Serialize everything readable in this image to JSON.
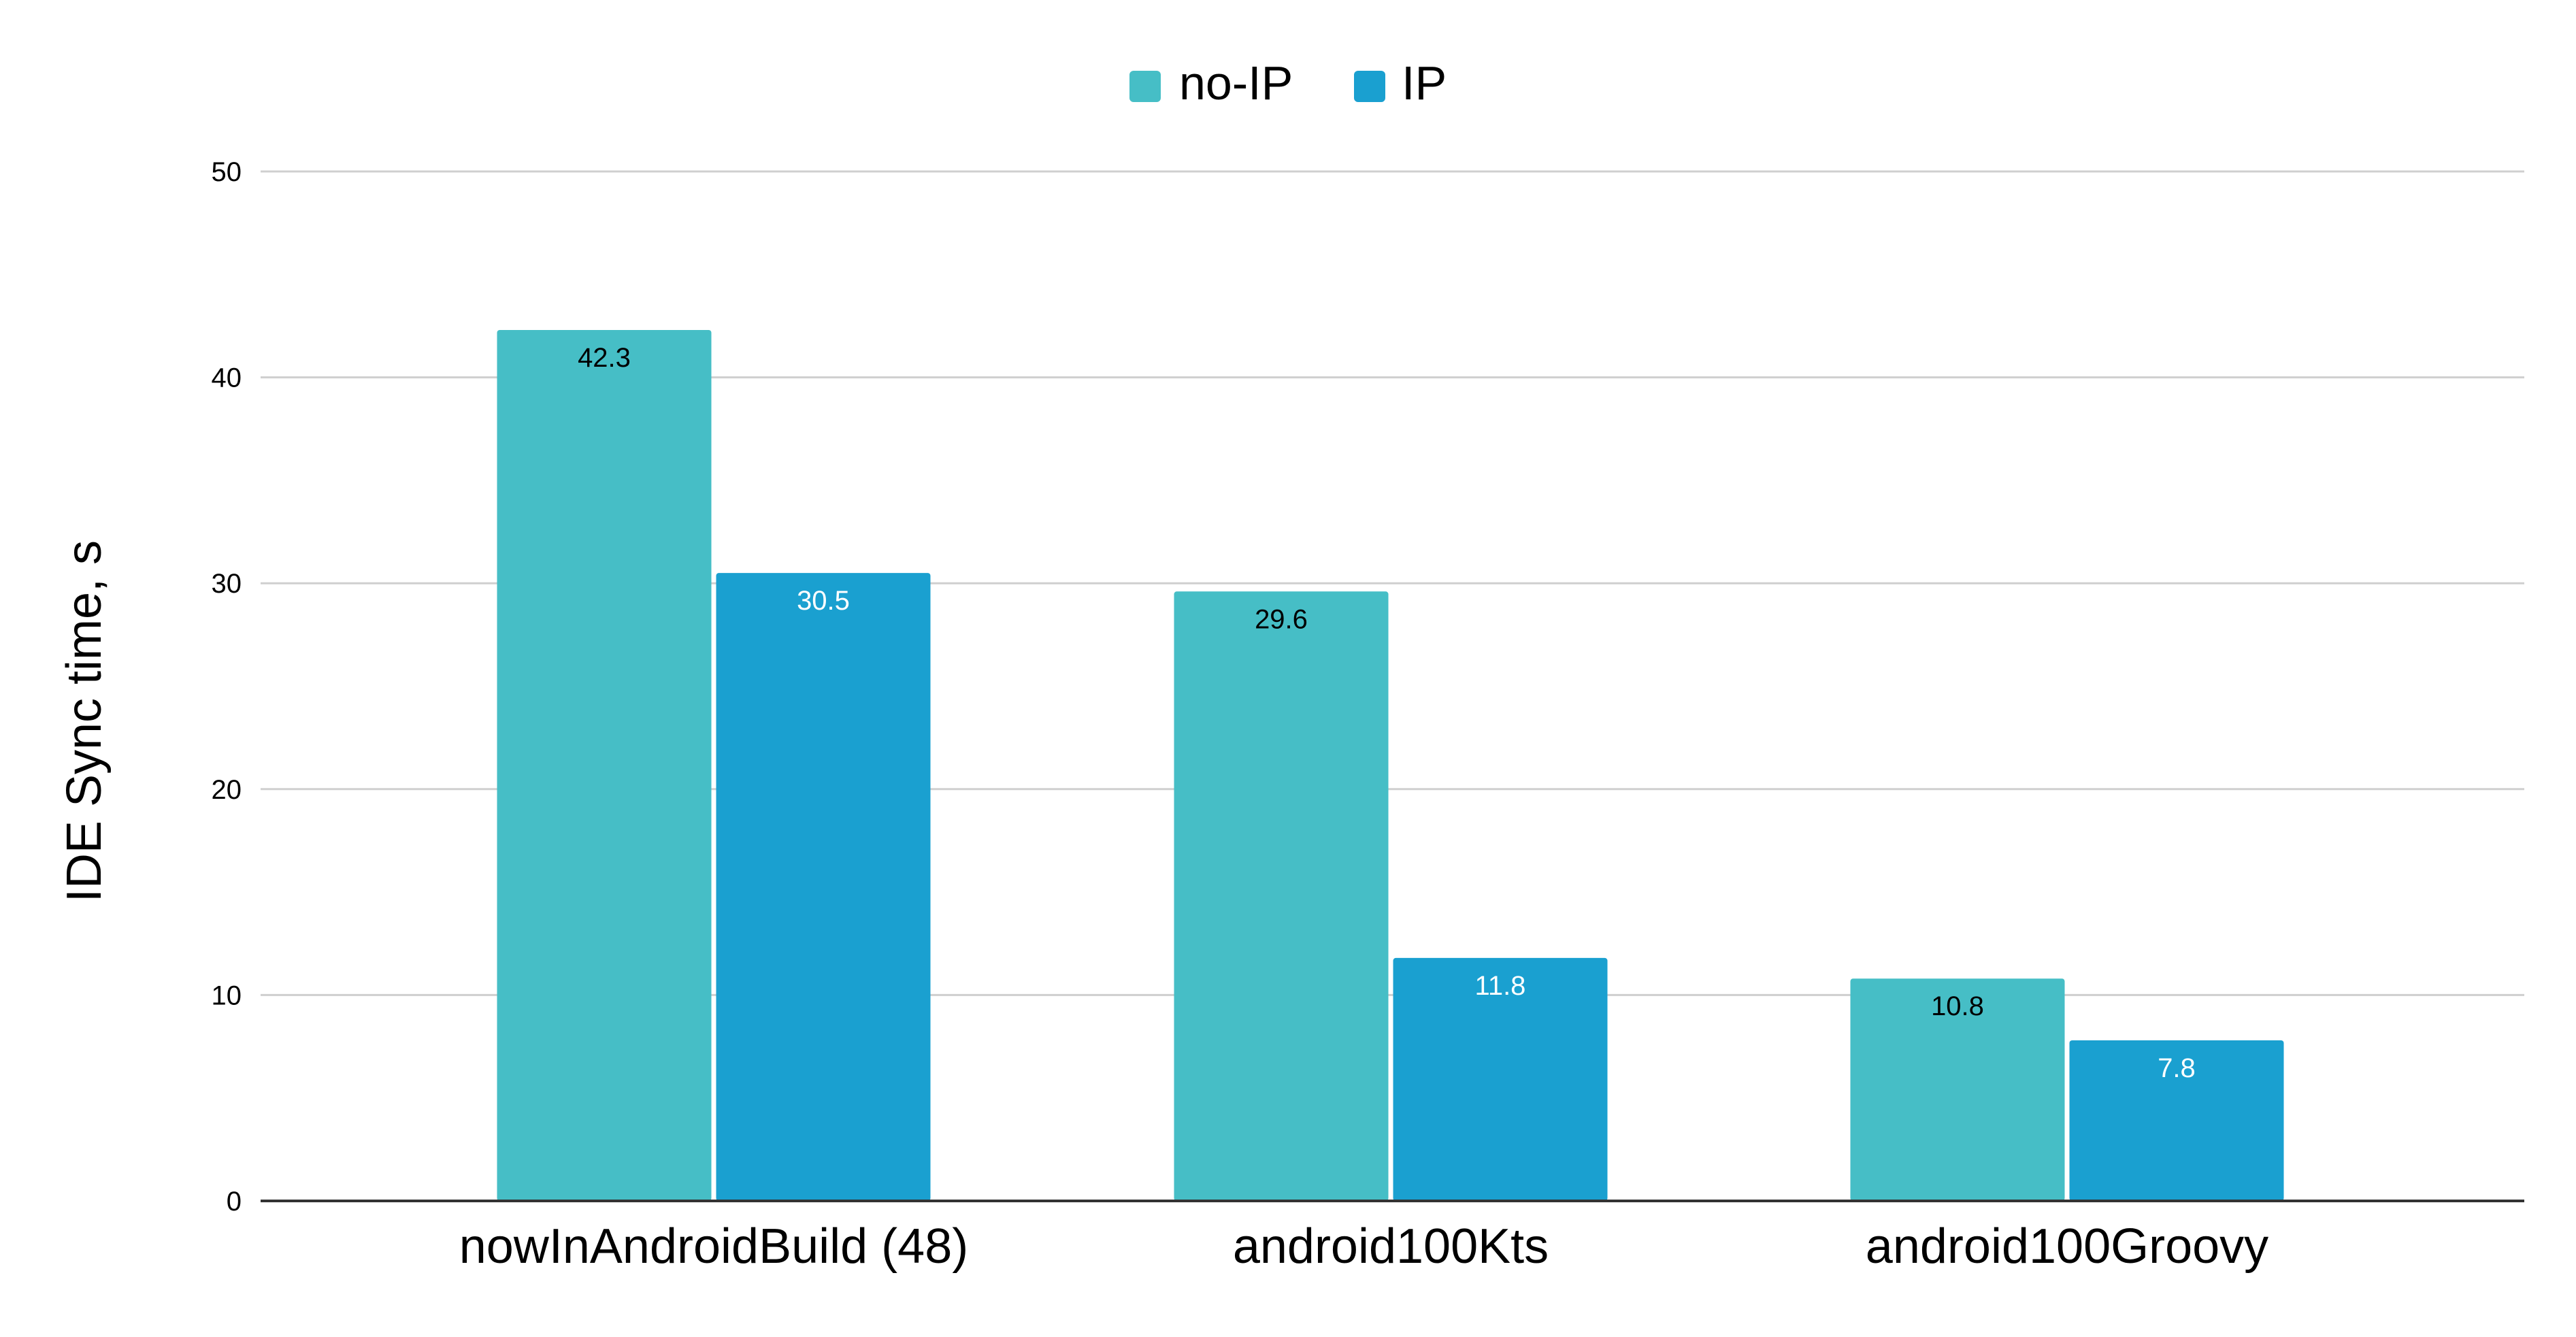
{
  "chart_data": {
    "type": "bar",
    "title": "",
    "xlabel": "",
    "ylabel": "IDE Sync time, s",
    "categories": [
      "nowInAndroidBuild (48)",
      "android100Kts",
      "android100Groovy"
    ],
    "series": [
      {
        "name": "no-IP",
        "values": [
          42.3,
          29.6,
          10.8
        ],
        "color": "#46bec6",
        "label_color": "#000000"
      },
      {
        "name": "IP",
        "values": [
          30.5,
          11.8,
          7.8
        ],
        "color": "#1aa0d0",
        "label_color": "#ffffff"
      }
    ],
    "ylim": [
      0,
      50
    ],
    "yticks": [
      0,
      10,
      20,
      30,
      40,
      50
    ],
    "grid": true,
    "legend": "top-center"
  }
}
